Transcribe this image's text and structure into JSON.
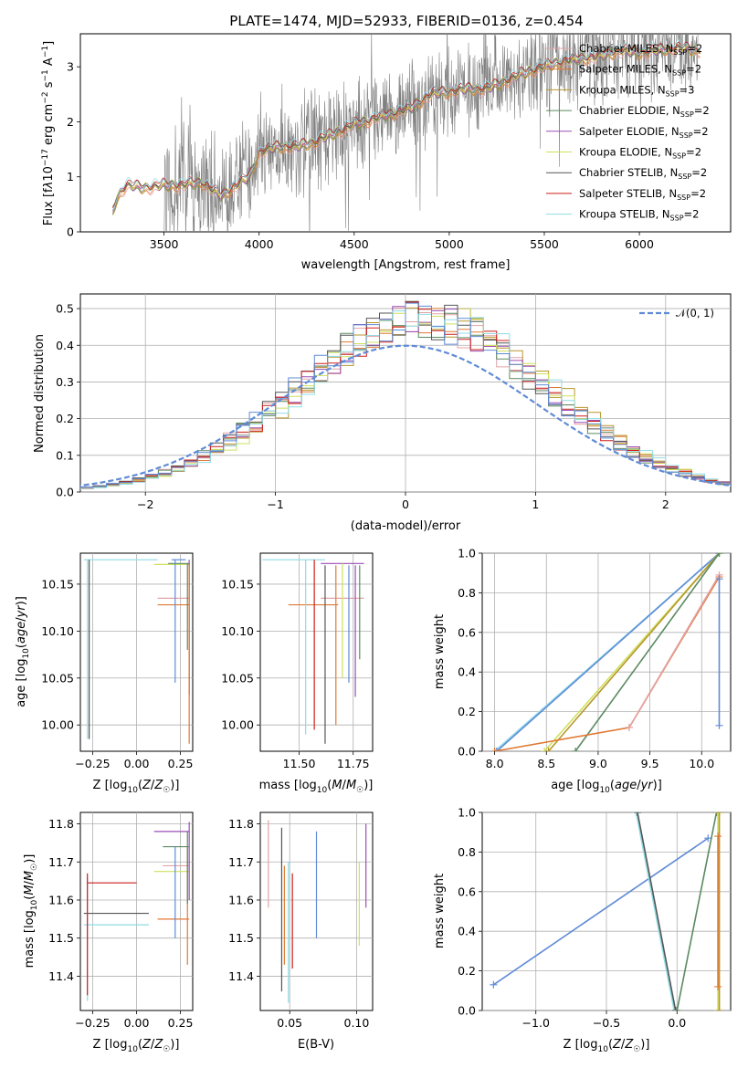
{
  "colors": {
    "chabrier_miles": "#e3a3a6",
    "salpeter_miles": "#e07a35",
    "kroupa_miles": "#b8962c",
    "chabrier_elodie": "#5b8a62",
    "salpeter_elodie": "#9a4fb5",
    "kroupa_elodie": "#cfe05d",
    "chabrier_stelib": "#555555",
    "salpeter_stelib": "#cc1e1a",
    "kroupa_stelib": "#8fdce6",
    "data": "#808080",
    "normal": "#5f8bd6",
    "blue_series": "#5f8bd6"
  },
  "chart_data": [
    {
      "type": "line",
      "id": "spectrum",
      "title": "PLATE=1474, MJD=52933, FIBERID=0136, z=0.454",
      "xlabel": "wavelength [Angstrom, rest frame]",
      "ylabel": "Flux [f_λ 10^-17 erg cm^-2 s^-1 A^-1]",
      "xlim": [
        3060,
        6480
      ],
      "ylim": [
        0,
        3.6
      ],
      "xticks": [
        3500,
        4000,
        4500,
        5000,
        5500,
        6000
      ],
      "yticks": [
        0,
        1,
        2,
        3
      ],
      "grid": false,
      "legend_position": "top-right",
      "model_points": [
        [
          3200,
          0.0
        ],
        [
          3250,
          0.6
        ],
        [
          3300,
          0.85
        ],
        [
          3400,
          0.8
        ],
        [
          3500,
          0.85
        ],
        [
          3600,
          0.85
        ],
        [
          3700,
          0.9
        ],
        [
          3800,
          0.65
        ],
        [
          3900,
          0.9
        ],
        [
          3950,
          1.0
        ],
        [
          4000,
          1.45
        ],
        [
          4100,
          1.55
        ],
        [
          4200,
          1.55
        ],
        [
          4300,
          1.65
        ],
        [
          4400,
          1.8
        ],
        [
          4500,
          1.95
        ],
        [
          4600,
          2.05
        ],
        [
          4700,
          2.15
        ],
        [
          4800,
          2.25
        ],
        [
          4900,
          2.5
        ],
        [
          5000,
          2.55
        ],
        [
          5100,
          2.6
        ],
        [
          5200,
          2.6
        ],
        [
          5300,
          2.75
        ],
        [
          5400,
          2.9
        ],
        [
          5500,
          3.0
        ],
        [
          5600,
          3.1
        ],
        [
          5700,
          3.15
        ],
        [
          5800,
          3.2
        ],
        [
          5900,
          3.3
        ],
        [
          6000,
          3.25
        ],
        [
          6100,
          3.3
        ],
        [
          6200,
          3.35
        ],
        [
          6300,
          3.3
        ]
      ],
      "series": [
        {
          "name": "Chabrier MILES, N_SSP=2",
          "color_key": "chabrier_miles"
        },
        {
          "name": "Salpeter MILES, N_SSP=2",
          "color_key": "salpeter_miles"
        },
        {
          "name": "Kroupa MILES, N_SSP=3",
          "color_key": "kroupa_miles"
        },
        {
          "name": "Chabrier ELODIE, N_SSP=2",
          "color_key": "chabrier_elodie"
        },
        {
          "name": "Salpeter ELODIE, N_SSP=2",
          "color_key": "salpeter_elodie"
        },
        {
          "name": "Kroupa ELODIE, N_SSP=2",
          "color_key": "kroupa_elodie"
        },
        {
          "name": "Chabrier STELIB, N_SSP=2",
          "color_key": "chabrier_stelib"
        },
        {
          "name": "Salpeter STELIB, N_SSP=2",
          "color_key": "salpeter_stelib"
        },
        {
          "name": "Kroupa STELIB, N_SSP=2",
          "color_key": "kroupa_stelib"
        }
      ]
    },
    {
      "type": "line",
      "id": "residuals",
      "xlabel": "(data-model)/error",
      "ylabel": "Normed distribution",
      "xlim": [
        -2.5,
        2.5
      ],
      "ylim": [
        0,
        0.54
      ],
      "xticks": [
        -2,
        -1,
        0,
        1,
        2
      ],
      "yticks": [
        0.0,
        0.1,
        0.2,
        0.3,
        0.4,
        0.5
      ],
      "grid": true,
      "legend_position": "top-right",
      "legend": "𝒩(0, 1)",
      "bin_width": 0.1
    },
    {
      "type": "scatter",
      "id": "age_vs_Z",
      "xlabel": "Z [log10(Z/Z☉)]",
      "ylabel": "age  [log10(age/yr)]",
      "xlim": [
        -0.32,
        0.32
      ],
      "ylim": [
        9.972,
        10.183
      ],
      "xticks": [
        -0.25,
        0.0,
        0.25
      ],
      "yticks": [
        10.0,
        10.05,
        10.1,
        10.15
      ],
      "grid": true,
      "hlines": [
        [
          -0.3,
          0.12,
          10.176,
          "kroupa_stelib"
        ],
        [
          0.1,
          0.3,
          10.171,
          "kroupa_elodie"
        ],
        [
          0.12,
          0.3,
          10.135,
          "chabrier_miles"
        ],
        [
          0.12,
          0.3,
          10.128,
          "salpeter_miles"
        ],
        [
          0.2,
          0.28,
          10.176,
          "blue_series"
        ],
        [
          0.18,
          0.3,
          10.172,
          "chabrier_elodie"
        ]
      ],
      "vlines": [
        [
          -0.28,
          9.985,
          10.176,
          "kroupa_stelib"
        ],
        [
          -0.27,
          9.985,
          10.176,
          "chabrier_stelib"
        ],
        [
          0.22,
          10.045,
          10.176,
          "blue_series"
        ],
        [
          0.3,
          10.032,
          10.176,
          "salpeter_elodie"
        ],
        [
          0.3,
          9.98,
          10.17,
          "salpeter_miles"
        ],
        [
          0.29,
          10.08,
          10.172,
          "chabrier_elodie"
        ]
      ]
    },
    {
      "type": "scatter",
      "id": "age_vs_mass",
      "xlabel": "mass [log10(M/M☉)]",
      "ylabel": "",
      "xlim": [
        11.32,
        11.84
      ],
      "ylim": [
        9.972,
        10.183
      ],
      "xticks": [
        11.5,
        11.75
      ],
      "yticks": [
        10.0,
        10.05,
        10.1,
        10.15
      ],
      "grid": true,
      "hlines": [
        [
          11.33,
          11.62,
          10.176,
          "kroupa_stelib"
        ],
        [
          11.45,
          11.68,
          10.128,
          "salpeter_miles"
        ],
        [
          11.6,
          11.8,
          10.135,
          "chabrier_miles"
        ],
        [
          11.6,
          11.8,
          10.172,
          "salpeter_elodie"
        ]
      ],
      "vlines": [
        [
          11.53,
          9.99,
          10.176,
          "kroupa_stelib"
        ],
        [
          11.57,
          9.995,
          10.176,
          "salpeter_stelib"
        ],
        [
          11.62,
          9.98,
          10.17,
          "chabrier_stelib"
        ],
        [
          11.67,
          10.0,
          10.17,
          "salpeter_miles"
        ],
        [
          11.73,
          10.045,
          10.17,
          "blue_series"
        ],
        [
          11.76,
          10.03,
          10.17,
          "salpeter_elodie"
        ],
        [
          11.78,
          10.07,
          10.17,
          "chabrier_elodie"
        ],
        [
          11.7,
          10.05,
          10.172,
          "kroupa_elodie"
        ]
      ]
    },
    {
      "type": "line",
      "id": "massweight_vs_age",
      "xlabel": "age  [log10(age/yr)]",
      "ylabel": "mass weight",
      "xlim": [
        7.88,
        10.28
      ],
      "ylim": [
        0,
        1.0
      ],
      "xticks": [
        8.0,
        8.5,
        9.0,
        9.5,
        10.0
      ],
      "yticks": [
        0.0,
        0.2,
        0.4,
        0.6,
        0.8,
        1.0
      ],
      "grid": true,
      "lines": [
        {
          "color_key": "kroupa_stelib",
          "points": [
            [
              8.0,
              0.0
            ],
            [
              10.17,
              1.0
            ]
          ]
        },
        {
          "color_key": "blue_series",
          "points": [
            [
              8.02,
              0.0
            ],
            [
              10.17,
              1.0
            ]
          ]
        },
        {
          "color_key": "kroupa_elodie",
          "points": [
            [
              8.48,
              0.0
            ],
            [
              10.17,
              1.0
            ]
          ]
        },
        {
          "color_key": "kroupa_miles",
          "points": [
            [
              8.52,
              0.0
            ],
            [
              10.17,
              1.0
            ]
          ]
        },
        {
          "color_key": "chabrier_elodie",
          "points": [
            [
              8.78,
              0.0
            ],
            [
              10.17,
              1.0
            ]
          ]
        },
        {
          "color_key": "salpeter_miles",
          "points": [
            [
              8.0,
              0.0
            ],
            [
              9.3,
              0.12
            ],
            [
              10.17,
              0.88
            ]
          ]
        },
        {
          "color_key": "chabrier_miles",
          "points": [
            [
              9.3,
              0.12
            ],
            [
              10.17,
              0.89
            ]
          ]
        },
        {
          "color_key": "blue_series",
          "points": [
            [
              10.17,
              0.13
            ],
            [
              10.17,
              0.87
            ]
          ]
        }
      ]
    },
    {
      "type": "scatter",
      "id": "mass_vs_Z",
      "xlabel": "Z [log10(Z/Z☉)]",
      "ylabel": "mass [log10(M/M☉)]",
      "xlim": [
        -0.32,
        0.32
      ],
      "ylim": [
        11.31,
        11.83
      ],
      "xticks": [
        -0.25,
        0.0,
        0.25
      ],
      "yticks": [
        11.4,
        11.5,
        11.6,
        11.7,
        11.8
      ],
      "grid": true,
      "hlines": [
        [
          -0.28,
          0.0,
          11.645,
          "salpeter_stelib"
        ],
        [
          -0.3,
          0.07,
          11.565,
          "chabrier_stelib"
        ],
        [
          -0.3,
          0.07,
          11.535,
          "kroupa_stelib"
        ],
        [
          0.1,
          0.3,
          11.78,
          "salpeter_elodie"
        ],
        [
          0.15,
          0.3,
          11.74,
          "chabrier_elodie"
        ],
        [
          0.15,
          0.3,
          11.69,
          "chabrier_miles"
        ],
        [
          0.1,
          0.3,
          11.675,
          "kroupa_elodie"
        ],
        [
          0.12,
          0.3,
          11.55,
          "salpeter_miles"
        ]
      ],
      "vlines": [
        [
          -0.28,
          11.335,
          11.66,
          "kroupa_stelib"
        ],
        [
          -0.28,
          11.35,
          11.67,
          "salpeter_stelib"
        ],
        [
          0.22,
          11.5,
          11.74,
          "blue_series"
        ],
        [
          0.29,
          11.43,
          11.74,
          "salpeter_miles"
        ],
        [
          0.3,
          11.6,
          11.805,
          "salpeter_elodie"
        ],
        [
          0.29,
          11.59,
          11.78,
          "chabrier_elodie"
        ]
      ]
    },
    {
      "type": "scatter",
      "id": "mass_vs_ebv",
      "xlabel": "E(B-V)",
      "ylabel": "",
      "xlim": [
        0.028,
        0.112
      ],
      "ylim": [
        11.31,
        11.83
      ],
      "xticks": [
        0.05,
        0.1
      ],
      "yticks": [
        11.4,
        11.5,
        11.6,
        11.7,
        11.8
      ],
      "grid": true,
      "vlines": [
        [
          0.034,
          11.58,
          11.81,
          "chabrier_miles"
        ],
        [
          0.044,
          11.36,
          11.79,
          "chabrier_stelib"
        ],
        [
          0.046,
          11.43,
          11.69,
          "salpeter_miles"
        ],
        [
          0.049,
          11.33,
          11.7,
          "kroupa_stelib"
        ],
        [
          0.052,
          11.42,
          11.67,
          "salpeter_stelib"
        ],
        [
          0.07,
          11.5,
          11.78,
          "blue_series"
        ],
        [
          0.102,
          11.48,
          11.7,
          "kroupa_elodie"
        ],
        [
          0.107,
          11.58,
          11.8,
          "salpeter_elodie"
        ]
      ]
    },
    {
      "type": "line",
      "id": "massweight_vs_Z",
      "xlabel": "Z [log10(Z/Z☉)]",
      "ylabel": "mass weight",
      "xlim": [
        -1.38,
        0.38
      ],
      "ylim": [
        0,
        1.0
      ],
      "xticks": [
        -1.0,
        -0.5,
        0.0
      ],
      "yticks": [
        0.0,
        0.2,
        0.4,
        0.6,
        0.8,
        1.0
      ],
      "grid": true,
      "lines": [
        {
          "color_key": "blue_series",
          "points": [
            [
              -1.3,
              0.13
            ],
            [
              0.22,
              0.87
            ]
          ]
        },
        {
          "color_key": "kroupa_stelib",
          "points": [
            [
              -0.29,
              1.0
            ],
            [
              -0.02,
              0.0
            ]
          ]
        },
        {
          "color_key": "chabrier_stelib",
          "points": [
            [
              -0.28,
              1.0
            ],
            [
              -0.01,
              0.0
            ]
          ]
        },
        {
          "color_key": "chabrier_elodie",
          "points": [
            [
              0.0,
              0.0
            ],
            [
              0.28,
              1.0
            ]
          ]
        },
        {
          "color_key": "kroupa_elodie",
          "points": [
            [
              0.29,
              0.0
            ],
            [
              0.29,
              1.0
            ]
          ]
        },
        {
          "color_key": "kroupa_miles",
          "points": [
            [
              0.3,
              0.0
            ],
            [
              0.3,
              1.0
            ]
          ]
        },
        {
          "color_key": "salpeter_miles",
          "points": [
            [
              0.29,
              0.12
            ],
            [
              0.29,
              0.88
            ]
          ]
        }
      ]
    }
  ]
}
